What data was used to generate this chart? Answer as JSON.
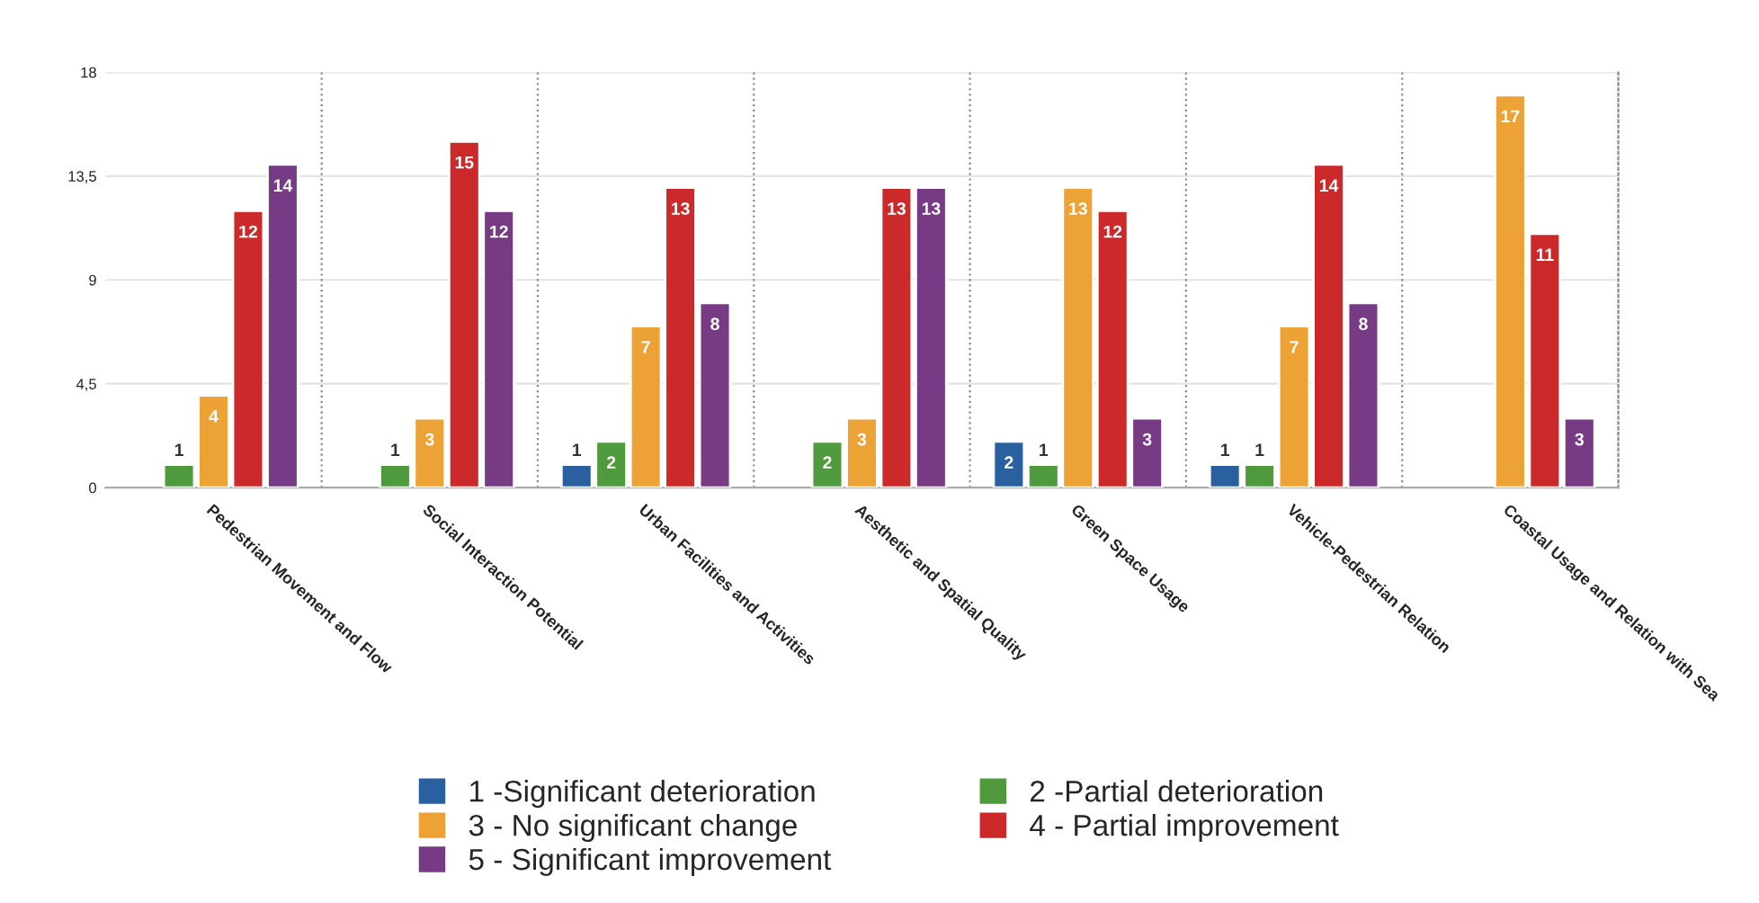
{
  "chart_data": {
    "type": "bar",
    "categories": [
      "Pedestrian Movement and Flow",
      "Social Interaction Potential",
      "Urban Facilities and Activities",
      "Aesthetic and Spatial Quality",
      "Green Space Usage",
      "Vehicle-Pedestrian Relation",
      "Coastal Usage and Relation with Sea"
    ],
    "series": [
      {
        "name": "1 -Significant deterioration",
        "color": "#2a5fa0",
        "values": [
          null,
          null,
          1,
          null,
          2,
          1,
          null
        ]
      },
      {
        "name": "2 -Partial deterioration",
        "color": "#4e9a3c",
        "values": [
          1,
          1,
          2,
          2,
          1,
          1,
          null
        ]
      },
      {
        "name": "3 - No significant change",
        "color": "#eda235",
        "values": [
          4,
          3,
          7,
          3,
          13,
          7,
          17
        ]
      },
      {
        "name": "4 - Partial improvement",
        "color": "#cc2a2a",
        "values": [
          12,
          15,
          13,
          13,
          12,
          14,
          11
        ]
      },
      {
        "name": "5 - Significant improvement",
        "color": "#773a84",
        "values": [
          14,
          12,
          8,
          13,
          3,
          8,
          3
        ]
      }
    ],
    "ylim": [
      0,
      18
    ],
    "yticks": [
      0,
      {
        "value": 4.5,
        "label": "4,5"
      },
      9,
      {
        "value": 13.5,
        "label": "13,5"
      },
      18
    ],
    "grid": true,
    "data_labels": true,
    "legend": "bottom"
  }
}
